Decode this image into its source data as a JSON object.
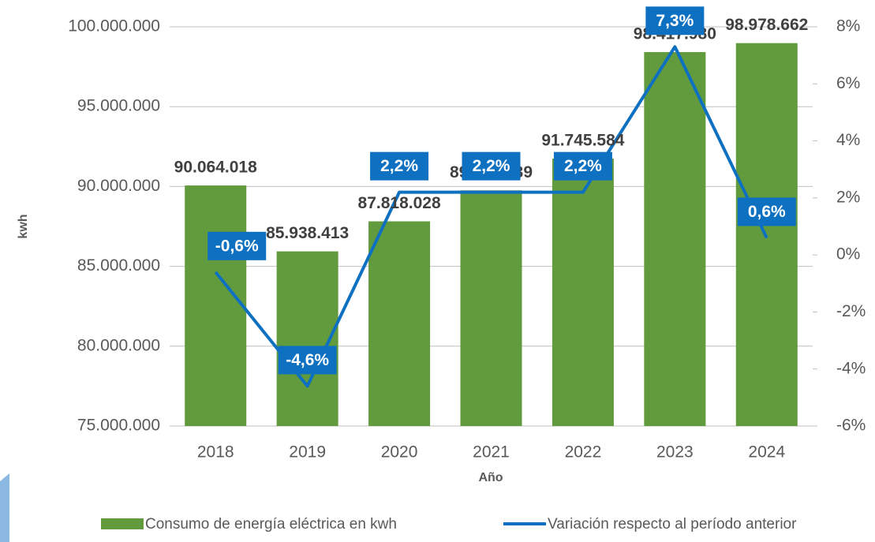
{
  "chart_data": {
    "type": "bar",
    "categories": [
      "2018",
      "2019",
      "2020",
      "2021",
      "2022",
      "2023",
      "2024"
    ],
    "xlabel": "Año",
    "ylabel": "kwh",
    "series": [
      {
        "name": "Consumo de energía eléctrica en kwh",
        "type": "bar",
        "color": "#629a3e",
        "values": [
          90064018,
          85938413,
          87818028,
          89760039,
          91745584,
          98417980,
          98978662
        ],
        "value_labels": [
          "90.064.018",
          "85.938.413",
          "87.818.028",
          "89.760.039",
          "91.745.584",
          "98.417.980",
          "98.978.662"
        ]
      },
      {
        "name": "Variación respecto al período anterior",
        "type": "line",
        "axis": "y2",
        "color": "#0e70c0",
        "values": [
          -0.6,
          -4.6,
          2.2,
          2.2,
          2.2,
          7.3,
          0.6
        ],
        "value_labels": [
          "-0,6%",
          "-4,6%",
          "2,2%",
          "2,2%",
          "2,2%",
          "7,3%",
          "0,6%"
        ]
      }
    ],
    "ylim": [
      75000000,
      100000000
    ],
    "yticks": [
      {
        "value": 75000000,
        "label": "75.000.000"
      },
      {
        "value": 80000000,
        "label": "80.000.000"
      },
      {
        "value": 85000000,
        "label": "85.000.000"
      },
      {
        "value": 90000000,
        "label": "90.000.000"
      },
      {
        "value": 95000000,
        "label": "95.000.000"
      },
      {
        "value": 100000000,
        "label": "100.000.000"
      }
    ],
    "y2lim": [
      -6,
      8
    ],
    "y2ticks": [
      {
        "value": -6,
        "label": "-6%"
      },
      {
        "value": -4,
        "label": "-4%"
      },
      {
        "value": -2,
        "label": "-2%"
      },
      {
        "value": 0,
        "label": "0%"
      },
      {
        "value": 2,
        "label": "2%"
      },
      {
        "value": 4,
        "label": "4%"
      },
      {
        "value": 6,
        "label": "6%"
      },
      {
        "value": 8,
        "label": "8%"
      }
    ],
    "grid": true,
    "legend": "bottom"
  }
}
